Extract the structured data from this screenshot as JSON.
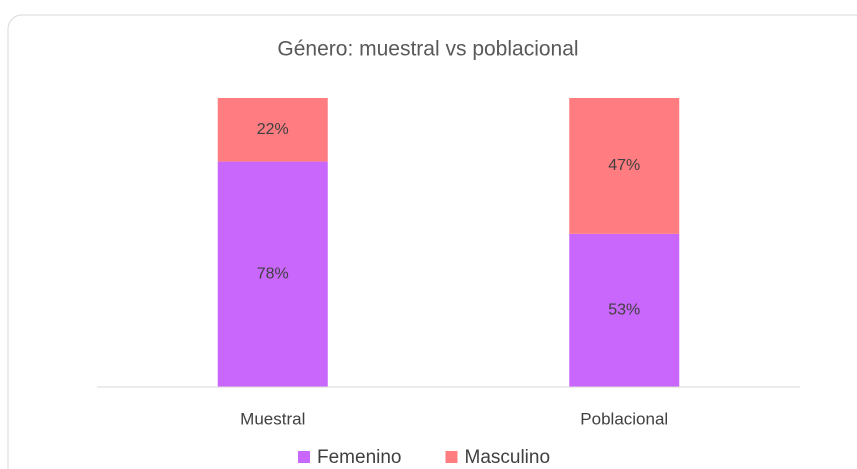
{
  "chart_data": {
    "type": "stacked_bar",
    "title": "Género: muestral vs poblacional",
    "categories": [
      "Muestral",
      "Poblacional"
    ],
    "series": [
      {
        "name": "Femenino",
        "color": "#c966fb",
        "values": [
          78,
          53
        ],
        "value_labels": [
          "78%",
          "53%"
        ]
      },
      {
        "name": "Masculino",
        "color": "#ff7c80",
        "values": [
          22,
          47
        ],
        "value_labels": [
          "22%",
          "47%"
        ]
      }
    ],
    "ylim": [
      0,
      100
    ],
    "legend": "bottom"
  }
}
